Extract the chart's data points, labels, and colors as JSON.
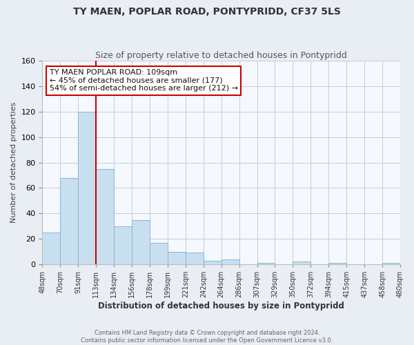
{
  "title": "TY MAEN, POPLAR ROAD, PONTYPRIDD, CF37 5LS",
  "subtitle": "Size of property relative to detached houses in Pontypridd",
  "xlabel": "Distribution of detached houses by size in Pontypridd",
  "ylabel": "Number of detached properties",
  "footer_line1": "Contains HM Land Registry data © Crown copyright and database right 2024.",
  "footer_line2": "Contains public sector information licensed under the Open Government Licence v3.0.",
  "bin_labels": [
    "48sqm",
    "70sqm",
    "91sqm",
    "113sqm",
    "134sqm",
    "156sqm",
    "178sqm",
    "199sqm",
    "221sqm",
    "242sqm",
    "264sqm",
    "286sqm",
    "307sqm",
    "329sqm",
    "350sqm",
    "372sqm",
    "394sqm",
    "415sqm",
    "437sqm",
    "458sqm",
    "480sqm"
  ],
  "bar_heights": [
    25,
    68,
    120,
    75,
    30,
    35,
    17,
    10,
    9,
    3,
    4,
    0,
    1,
    0,
    2,
    0,
    1,
    0,
    0,
    1
  ],
  "bar_color": "#c8dff0",
  "bar_edge_color": "#8ab4d4",
  "vline_color": "#cc0000",
  "ylim": [
    0,
    160
  ],
  "yticks": [
    0,
    20,
    40,
    60,
    80,
    100,
    120,
    140,
    160
  ],
  "annotation_title": "TY MAEN POPLAR ROAD: 109sqm",
  "annotation_line1": "← 45% of detached houses are smaller (177)",
  "annotation_line2": "54% of semi-detached houses are larger (212) →",
  "annotation_box_color": "#ffffff",
  "annotation_box_edge": "#cc0000",
  "bg_color": "#e8eef4",
  "plot_bg_color": "#f5f8fc",
  "grid_color": "#c5cdd8",
  "title_color": "#333333",
  "subtitle_color": "#555555",
  "footer_color": "#666666"
}
